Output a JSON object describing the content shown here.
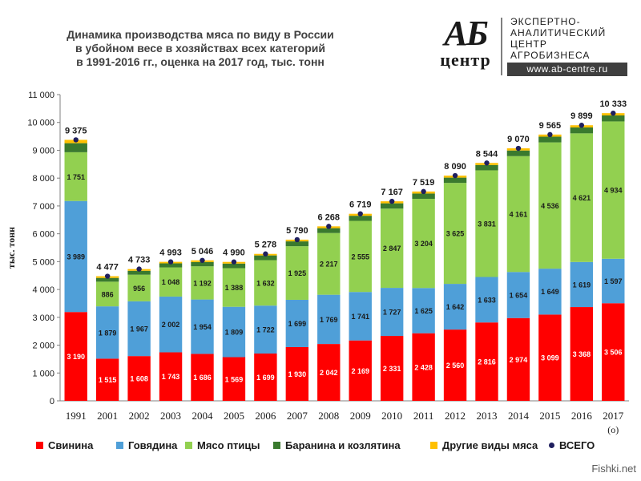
{
  "title": {
    "line1": "Динамика производства мяса по виду в России",
    "line2": "в убойном весе в хозяйствах всех категорий",
    "line3": "в 1991-2016 гг., оценка на 2017 год, тыс. тонн"
  },
  "logo": {
    "mark_top": "АБ",
    "mark_bottom": "центр",
    "line1": "ЭКСПЕРТНО-",
    "line2": "АНАЛИТИЧЕСКИЙ",
    "line3": "ЦЕНТР",
    "line4": "АГРОБИЗНЕСА",
    "url": "www.ab-centre.ru"
  },
  "watermark": "Fishki.net",
  "colors": {
    "pork": "#ff0000",
    "beef": "#4f9fd8",
    "poultry": "#92d050",
    "lamb": "#3a7a2e",
    "other": "#ffc000",
    "total": "#1f1f5e"
  },
  "chart_data": {
    "type": "bar",
    "stacked": true,
    "categories": [
      "1991",
      "2001",
      "2002",
      "2003",
      "2004",
      "2005",
      "2006",
      "2007",
      "2008",
      "2009",
      "2010",
      "2011",
      "2012",
      "2013",
      "2014",
      "2015",
      "2016",
      "2017"
    ],
    "category_notes": {
      "2017": "(о)"
    },
    "ylabel": "тыс. тонн",
    "ylim": [
      0,
      11000
    ],
    "yticks": [
      0,
      1000,
      2000,
      3000,
      4000,
      5000,
      6000,
      7000,
      8000,
      9000,
      10000,
      11000
    ],
    "ytick_labels": [
      "0",
      "1 000",
      "2 000",
      "3 000",
      "4 000",
      "5 000",
      "6 000",
      "7 000",
      "8 000",
      "9 000",
      "10 000",
      "11 000"
    ],
    "grid": false,
    "legend_position": "bottom",
    "series": [
      {
        "name": "Свинина",
        "color_key": "pork",
        "values": [
          3190,
          1515,
          1608,
          1743,
          1686,
          1569,
          1699,
          1930,
          2042,
          2169,
          2331,
          2428,
          2560,
          2816,
          2974,
          3099,
          3368,
          3506
        ],
        "labels": [
          "3 190",
          "1 515",
          "1 608",
          "1 743",
          "1 686",
          "1 569",
          "1 699",
          "1 930",
          "2 042",
          "2 169",
          "2 331",
          "2 428",
          "2 560",
          "2 816",
          "2 974",
          "3 099",
          "3 368",
          "3 506"
        ]
      },
      {
        "name": "Говядина",
        "color_key": "beef",
        "values": [
          3989,
          1879,
          1967,
          2002,
          1954,
          1809,
          1722,
          1699,
          1769,
          1741,
          1727,
          1625,
          1642,
          1633,
          1654,
          1649,
          1619,
          1597
        ],
        "labels": [
          "3 989",
          "1 879",
          "1 967",
          "2 002",
          "1 954",
          "1 809",
          "1 722",
          "1 699",
          "1 769",
          "1 741",
          "1 727",
          "1 625",
          "1 642",
          "1 633",
          "1 654",
          "1 649",
          "1 619",
          "1 597"
        ]
      },
      {
        "name": "Мясо птицы",
        "color_key": "poultry",
        "values": [
          1751,
          886,
          956,
          1048,
          1192,
          1388,
          1632,
          1925,
          2217,
          2555,
          2847,
          3204,
          3625,
          3831,
          4161,
          4536,
          4621,
          4934
        ],
        "labels": [
          "1 751",
          "886",
          "956",
          "1 048",
          "1 192",
          "1 388",
          "1 632",
          "1 925",
          "2 217",
          "2 555",
          "2 847",
          "3 204",
          "3 625",
          "3 831",
          "4 161",
          "4 536",
          "4 621",
          "4 934"
        ]
      },
      {
        "name": "Баранина и козлятина",
        "color_key": "lamb",
        "values": [
          325,
          135,
          141,
          145,
          154,
          164,
          170,
          174,
          174,
          183,
          190,
          188,
          190,
          190,
          203,
          204,
          212,
          215
        ]
      },
      {
        "name": "Другие виды мяса",
        "color_key": "other",
        "values": [
          120,
          62,
          61,
          55,
          60,
          60,
          55,
          62,
          66,
          71,
          72,
          74,
          73,
          74,
          78,
          77,
          79,
          81
        ]
      }
    ],
    "total": {
      "name": "ВСЕГО",
      "color_key": "total",
      "values": [
        9375,
        4477,
        4733,
        4993,
        5046,
        4990,
        5278,
        5790,
        6268,
        6719,
        7167,
        7519,
        8090,
        8544,
        9070,
        9565,
        9899,
        10333
      ],
      "labels": [
        "9 375",
        "4 477",
        "4 733",
        "4 993",
        "5 046",
        "4 990",
        "5 278",
        "5 790",
        "6 268",
        "6 719",
        "7 167",
        "7 519",
        "8 090",
        "8 544",
        "9 070",
        "9 565",
        "9 899",
        "10 333"
      ]
    }
  }
}
